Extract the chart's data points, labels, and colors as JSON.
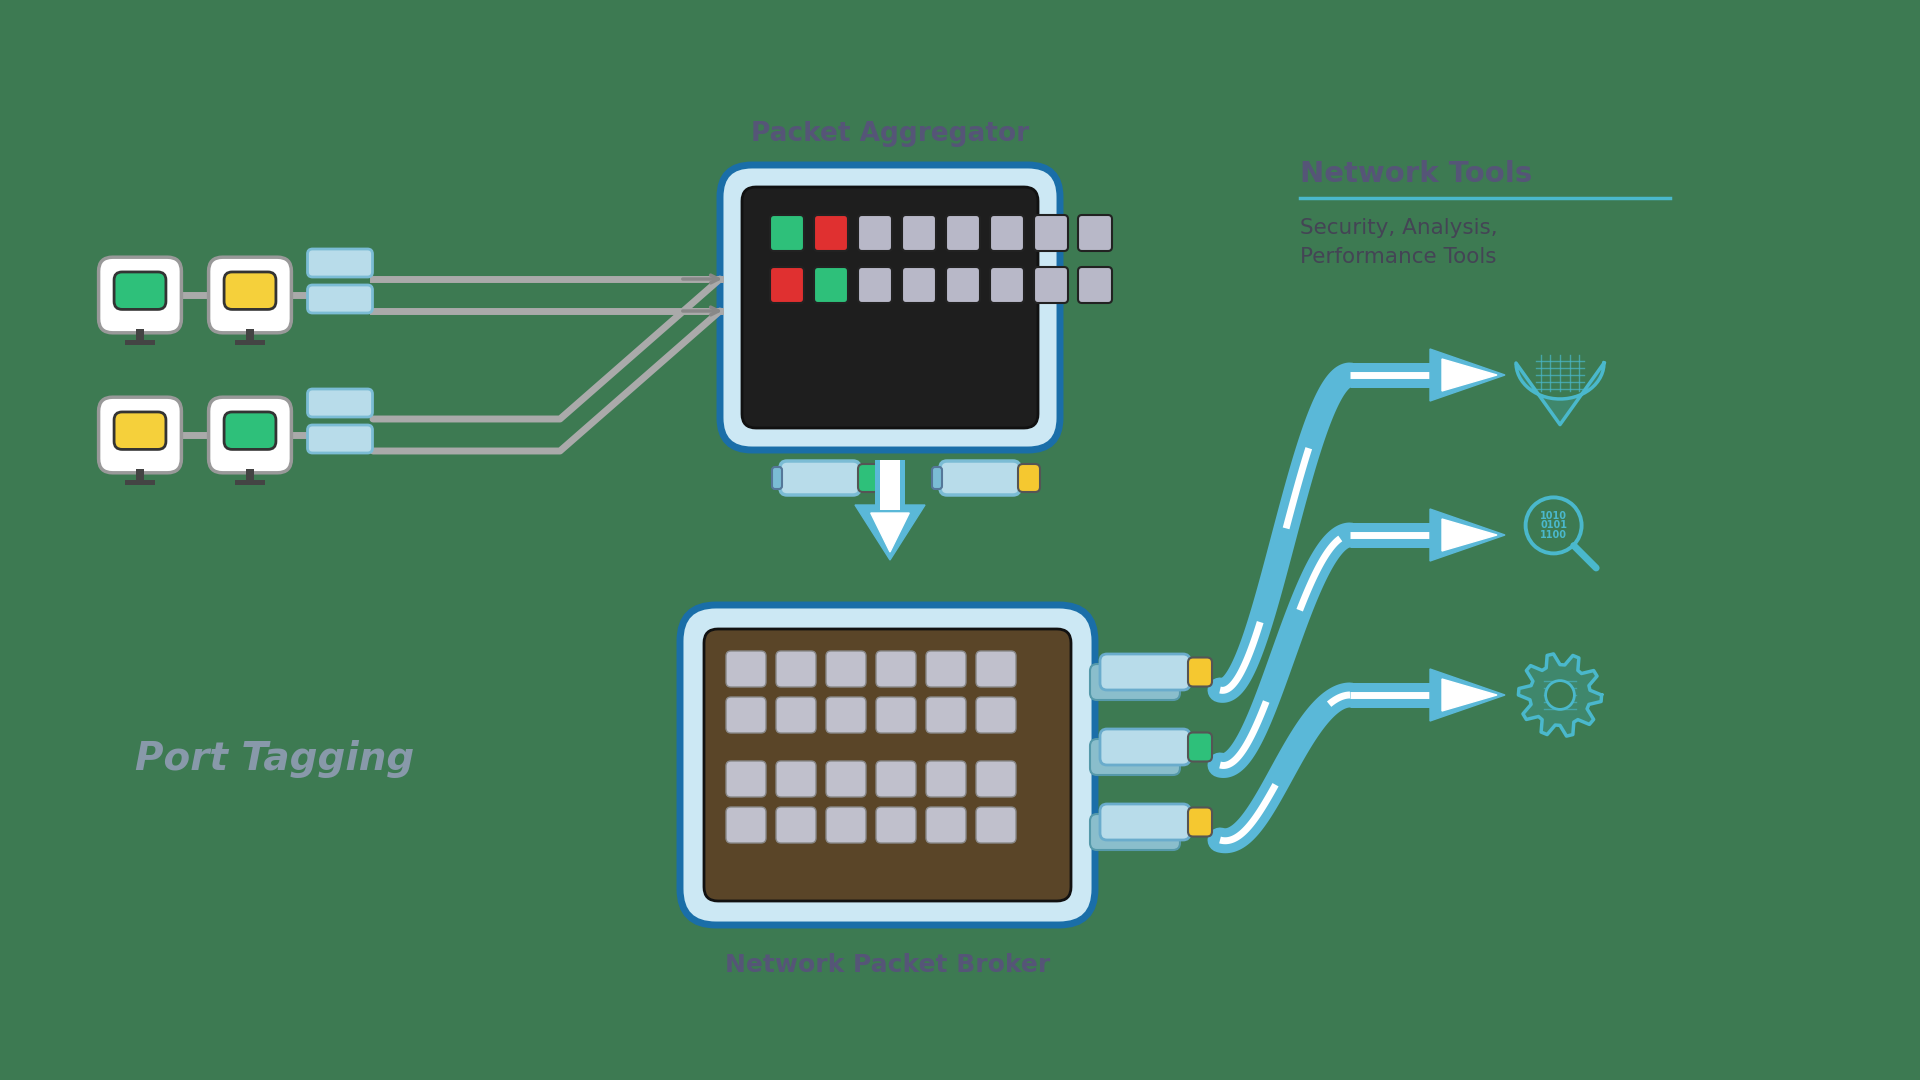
{
  "bg_color": "#3d7a52",
  "title_packet_aggregator": "Packet Aggregator",
  "title_network_packet_broker": "Network Packet Broker",
  "title_network_tools": "Network Tools",
  "subtitle_network_tools": "Security, Analysis,\nPerformance Tools",
  "title_port_tagging": "Port Tagging",
  "monitor_green": "#2ec07a",
  "monitor_yellow": "#f5d03b",
  "monitor_bg": "#ffffff",
  "monitor_border": "#999999",
  "cable_color_light": "#b8dcea",
  "cable_color_mid": "#7bbcd5",
  "arrow_blue": "#5ab8d8",
  "arrow_blue_dark": "#3a9abf",
  "device_box_bg": "#cce8f4",
  "device_box_border": "#1a6ea8",
  "aggregator_body": "#1e1e1e",
  "broker_body_dark": "#2e2010",
  "broker_body_mid": "#6b5030",
  "port_active_green": "#2ec07a",
  "port_active_red": "#e03030",
  "port_inactive": "#b8b8c8",
  "label_color": "#555577",
  "network_tools_line": "#4ab8cc",
  "connector_cyan": "#b8dcea",
  "connector_green": "#2ec07a",
  "connector_yellow": "#f5c830",
  "wire_color": "#aaaaaa",
  "wire_dark": "#888888"
}
